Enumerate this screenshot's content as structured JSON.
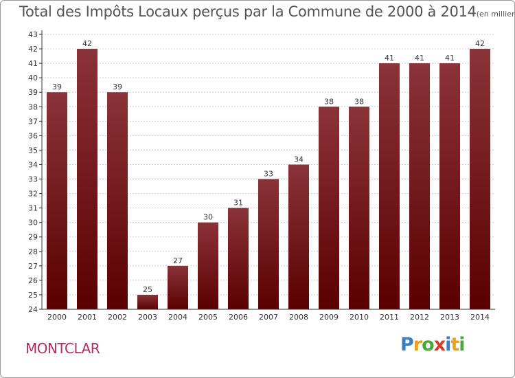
{
  "title": "Total des Impôts Locaux perçus par la Commune de 2000 à 2014",
  "unit_note": "(en milliers d'€)",
  "commune": "MONTCLAR",
  "logo": {
    "text": "Proxiti",
    "letters": [
      {
        "ch": "P",
        "color": "#3a7fc0"
      },
      {
        "ch": "r",
        "color": "#e8a020"
      },
      {
        "ch": "o",
        "color": "#4aa83a"
      },
      {
        "ch": "x",
        "color": "#d83a2a"
      },
      {
        "ch": "i",
        "color": "#3a7fc0"
      },
      {
        "ch": "t",
        "color": "#e8a020"
      },
      {
        "ch": "i",
        "color": "#4aa83a"
      }
    ]
  },
  "colors": {
    "bar_top": "#8a3338",
    "bar_bottom": "#5a0000",
    "grid": "#cccccc",
    "axis": "#333333"
  },
  "chart_data": {
    "type": "bar",
    "categories": [
      "2000",
      "2001",
      "2002",
      "2003",
      "2004",
      "2005",
      "2006",
      "2007",
      "2008",
      "2009",
      "2010",
      "2011",
      "2012",
      "2013",
      "2014"
    ],
    "values": [
      39,
      42,
      39,
      25,
      27,
      30,
      31,
      33,
      34,
      38,
      38,
      41,
      41,
      41,
      42
    ],
    "ylim": [
      24,
      43
    ],
    "yticks": [
      24,
      25,
      26,
      27,
      28,
      29,
      30,
      31,
      32,
      33,
      34,
      35,
      36,
      37,
      38,
      39,
      40,
      41,
      42,
      43
    ],
    "xlabel": "",
    "ylabel": "",
    "grid": true
  }
}
